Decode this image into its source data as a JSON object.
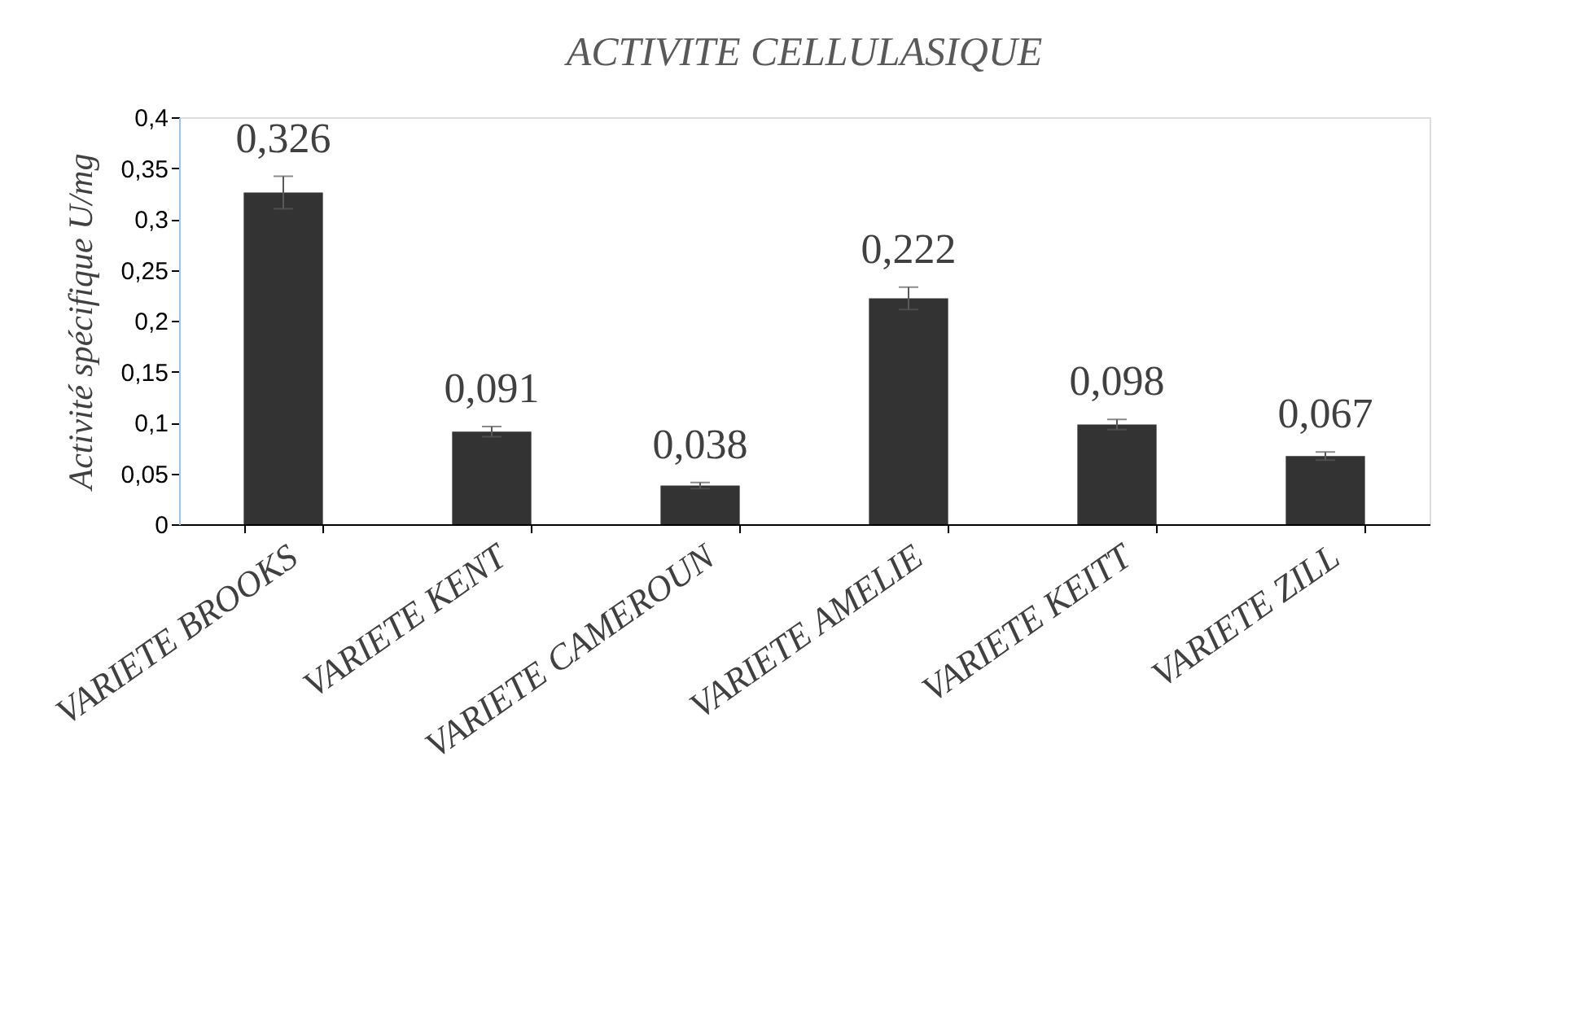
{
  "chart_data": {
    "type": "bar",
    "title": "ACTIVITE CELLULASIQUE",
    "ylabel": "Activité spécifique U/mg",
    "categories": [
      "VARIETE BROOKS",
      "VARIETE KENT",
      "VARIETE CAMEROUN",
      "VARIETE AMELIE",
      "VARIETE KEITT",
      "VARIETE ZILL"
    ],
    "values": [
      0.326,
      0.091,
      0.038,
      0.222,
      0.098,
      0.067
    ],
    "errors": [
      0.016,
      0.005,
      0.003,
      0.011,
      0.005,
      0.004
    ],
    "value_labels": [
      "0,326",
      "0,091",
      "0,038",
      "0,222",
      "0,098",
      "0,067"
    ],
    "color": "#333333",
    "grid": false,
    "ylim": [
      0,
      0.4
    ],
    "yticks": [
      0,
      {
        "value": 0.05,
        "label": "0,05"
      },
      {
        "value": 0.1,
        "label": "0,1"
      },
      {
        "value": 0.15,
        "label": "0,15"
      },
      {
        "value": 0.2,
        "label": "0,2"
      },
      {
        "value": 0.25,
        "label": "0,25"
      },
      {
        "value": 0.3,
        "label": "0,3"
      },
      {
        "value": 0.35,
        "label": "0,35"
      },
      {
        "value": 0.4,
        "label": "0,4"
      }
    ]
  }
}
